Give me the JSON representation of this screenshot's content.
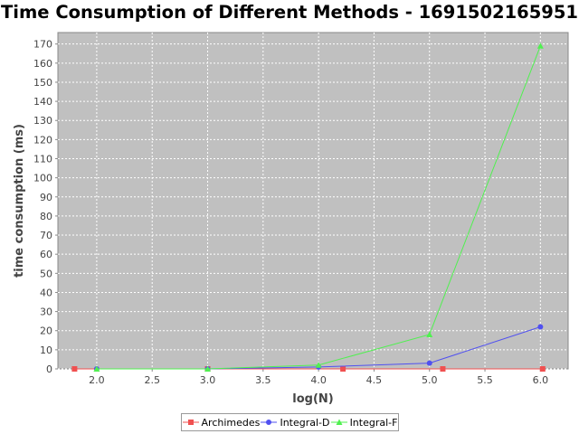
{
  "chart_data": {
    "type": "line",
    "title": "Time Consumption of Different Methods - 1691502165951",
    "xlabel": "log(N)",
    "ylabel": "time consumption (ms)",
    "xlim": [
      1.65,
      6.25
    ],
    "ylim": [
      0,
      176
    ],
    "x_ticks": [
      "2.0",
      "2.5",
      "3.0",
      "3.5",
      "4.0",
      "4.5",
      "5.0",
      "5.5",
      "6.0"
    ],
    "y_ticks": [
      "0",
      "10",
      "20",
      "30",
      "40",
      "50",
      "60",
      "70",
      "80",
      "90",
      "100",
      "110",
      "120",
      "130",
      "140",
      "150",
      "160",
      "170"
    ],
    "grid": true,
    "legend_position": "bottom",
    "series": [
      {
        "name": "Archimedes",
        "color": "#f05050",
        "marker": "square",
        "x": [
          1.8,
          3.0,
          4.22,
          5.12,
          6.02
        ],
        "values": [
          0,
          0,
          0,
          0,
          0
        ]
      },
      {
        "name": "Integral-D",
        "color": "#5050f0",
        "marker": "circle",
        "x": [
          2.0,
          3.0,
          4.0,
          5.0,
          6.0
        ],
        "values": [
          0,
          0,
          1,
          3,
          22
        ]
      },
      {
        "name": "Integral-F",
        "color": "#50f050",
        "marker": "triangle",
        "x": [
          2.0,
          3.0,
          4.0,
          5.0,
          6.0
        ],
        "values": [
          0,
          0,
          2,
          18,
          169
        ]
      }
    ]
  }
}
